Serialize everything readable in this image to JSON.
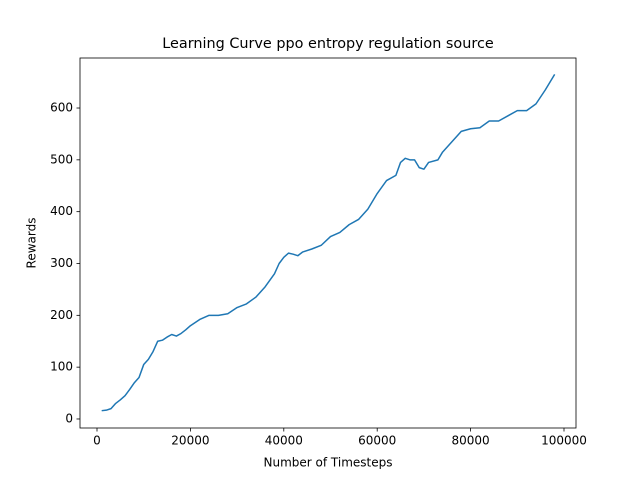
{
  "chart_data": {
    "type": "line",
    "title": "Learning Curve ppo entropy regulation source",
    "xlabel": "Number of Timesteps",
    "ylabel": "Rewards",
    "x": [
      1000,
      2000,
      3000,
      4000,
      5000,
      6000,
      7000,
      8000,
      9000,
      10000,
      11000,
      12000,
      13000,
      14000,
      15000,
      16000,
      17000,
      18000,
      19000,
      20000,
      22000,
      24000,
      26000,
      28000,
      30000,
      32000,
      34000,
      36000,
      38000,
      39000,
      40000,
      41000,
      42000,
      43000,
      44000,
      46000,
      48000,
      50000,
      52000,
      54000,
      56000,
      58000,
      60000,
      62000,
      64000,
      65000,
      66000,
      67000,
      68000,
      69000,
      70000,
      71000,
      73000,
      74000,
      76000,
      78000,
      80000,
      82000,
      84000,
      86000,
      88000,
      90000,
      92000,
      94000,
      96000,
      98000
    ],
    "values": [
      16,
      17,
      20,
      30,
      37,
      45,
      57,
      70,
      80,
      105,
      115,
      130,
      150,
      152,
      158,
      163,
      160,
      165,
      172,
      180,
      192,
      200,
      200,
      203,
      215,
      222,
      235,
      255,
      280,
      300,
      312,
      320,
      318,
      315,
      322,
      328,
      335,
      352,
      360,
      375,
      385,
      405,
      435,
      460,
      470,
      495,
      503,
      500,
      500,
      485,
      482,
      495,
      500,
      515,
      535,
      555,
      560,
      562,
      575,
      575,
      585,
      595,
      595,
      608,
      635,
      665
    ],
    "color": "#1f77b4",
    "xlim": [
      -3640,
      102570
    ],
    "ylim": [
      -17.4,
      696.5
    ],
    "xticks": [
      0,
      20000,
      40000,
      60000,
      80000,
      100000
    ],
    "yticks": [
      0,
      100,
      200,
      300,
      400,
      500,
      600
    ],
    "grid": false
  }
}
